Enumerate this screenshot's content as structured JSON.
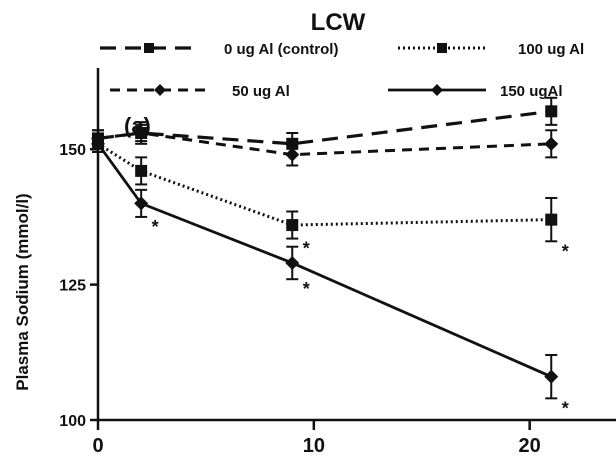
{
  "chart_data": {
    "type": "line",
    "title": "LCW",
    "panel_label": "(a)",
    "xlabel": "",
    "ylabel": "Plasma Sodium (mmol/l)",
    "xlim": [
      0,
      24
    ],
    "ylim": [
      100,
      165
    ],
    "x_ticks": [
      0,
      10,
      20
    ],
    "y_ticks": [
      100,
      125,
      150
    ],
    "grid": false,
    "legend_position": "top",
    "significance_marker": "*",
    "series": [
      {
        "name": "0 ug Al (control)",
        "style": "dashed",
        "marker": "square",
        "x": [
          0,
          2,
          9,
          21
        ],
        "y": [
          152,
          153,
          151,
          157
        ],
        "err": [
          1.5,
          1.5,
          2,
          2.5
        ],
        "significant": [
          false,
          false,
          false,
          false
        ]
      },
      {
        "name": "100 ug Al",
        "style": "dotted",
        "marker": "square",
        "x": [
          0,
          2,
          9,
          21
        ],
        "y": [
          151,
          146,
          136,
          137
        ],
        "err": [
          1.5,
          2.5,
          2.5,
          4
        ],
        "significant": [
          false,
          false,
          true,
          true
        ]
      },
      {
        "name": "50 ug Al",
        "style": "dashed-short",
        "marker": "diamond",
        "x": [
          0,
          2,
          9,
          21
        ],
        "y": [
          152,
          153,
          149,
          151
        ],
        "err": [
          1.5,
          2,
          2,
          2.5
        ],
        "significant": [
          false,
          false,
          false,
          false
        ]
      },
      {
        "name": "150 ugAl",
        "style": "solid",
        "marker": "diamond",
        "x": [
          0,
          2,
          9,
          21
        ],
        "y": [
          151,
          140,
          129,
          108
        ],
        "err": [
          1.5,
          2.5,
          3,
          4
        ],
        "significant": [
          false,
          true,
          true,
          true
        ]
      }
    ]
  }
}
